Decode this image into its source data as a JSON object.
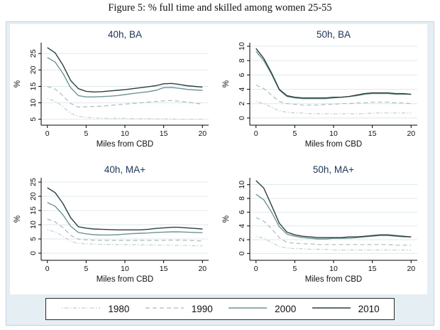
{
  "figure_title": "Figure 5: % full time and skilled among women 25-55",
  "colors": {
    "figure_background": "#e4eef3",
    "plot_background": "#ffffff",
    "grid": "#dde8ee",
    "axis": "#000000",
    "subplot_title": "#1c3555",
    "series": {
      "s1980": "#c3cfcf",
      "s1990": "#a7bdbb",
      "s2000": "#6f9492",
      "s2010": "#2a403d"
    }
  },
  "legend": {
    "entries": [
      {
        "label": "1980",
        "style": "dashdot",
        "color": "#c3cfcf"
      },
      {
        "label": "1990",
        "style": "dashed",
        "color": "#a7bdbb"
      },
      {
        "label": "2000",
        "style": "solid",
        "color": "#6f9492"
      },
      {
        "label": "2010",
        "style": "solid",
        "color": "#2a403d"
      }
    ]
  },
  "chart_data": [
    {
      "type": "line",
      "title": "40h, BA",
      "xlabel": "Miles from CBD",
      "ylabel": "%",
      "x": [
        0,
        1,
        2,
        3,
        4,
        5,
        6,
        7,
        8,
        9,
        10,
        11,
        12,
        13,
        14,
        15,
        16,
        17,
        18,
        19,
        20
      ],
      "xticks": [
        0,
        5,
        10,
        15,
        20
      ],
      "xlim": [
        -0.8,
        20.8
      ],
      "yticks": [
        5,
        10,
        15,
        20,
        25
      ],
      "ylim": [
        3.2,
        28.3
      ],
      "grid": "horizontal",
      "legend_position": "bottom-shared",
      "series": [
        {
          "name": "1980",
          "style": "dashdot",
          "values": [
            11.3,
            10.5,
            8.8,
            6.8,
            5.9,
            5.6,
            5.4,
            5.3,
            5.3,
            5.3,
            5.3,
            5.2,
            5.2,
            5.2,
            5.1,
            5.1,
            5.1,
            5.0,
            5.0,
            5.0,
            5.0
          ]
        },
        {
          "name": "1990",
          "style": "dashed",
          "values": [
            15.0,
            14.2,
            12.2,
            9.8,
            8.7,
            8.8,
            8.9,
            9.0,
            9.2,
            9.4,
            9.6,
            9.8,
            10.0,
            10.2,
            10.4,
            10.6,
            10.7,
            10.5,
            10.2,
            9.9,
            9.6
          ]
        },
        {
          "name": "2000",
          "style": "solid",
          "values": [
            23.8,
            22.4,
            19.0,
            14.6,
            12.2,
            11.8,
            11.8,
            11.9,
            12.0,
            12.2,
            12.5,
            12.8,
            13.1,
            13.4,
            13.8,
            14.6,
            14.7,
            14.4,
            14.1,
            13.9,
            13.8
          ]
        },
        {
          "name": "2010",
          "style": "solid",
          "values": [
            26.8,
            25.2,
            21.5,
            16.8,
            14.3,
            13.5,
            13.3,
            13.4,
            13.6,
            13.8,
            14.0,
            14.3,
            14.6,
            14.9,
            15.2,
            15.8,
            15.9,
            15.6,
            15.2,
            15.0,
            14.8
          ]
        }
      ]
    },
    {
      "type": "line",
      "title": "50h, BA",
      "xlabel": "Miles from CBD",
      "ylabel": "%",
      "x": [
        0,
        1,
        2,
        3,
        4,
        5,
        6,
        7,
        8,
        9,
        10,
        11,
        12,
        13,
        14,
        15,
        16,
        17,
        18,
        19,
        20
      ],
      "xticks": [
        0,
        5,
        10,
        15,
        20
      ],
      "xlim": [
        -0.8,
        20.8
      ],
      "yticks": [
        0,
        2,
        4,
        6,
        8,
        10
      ],
      "ylim": [
        -1.0,
        10.5
      ],
      "grid": "horizontal",
      "legend_position": "bottom-shared",
      "series": [
        {
          "name": "1980",
          "style": "dashdot",
          "values": [
            2.3,
            2.0,
            1.5,
            1.0,
            0.8,
            0.7,
            0.7,
            0.6,
            0.6,
            0.6,
            0.6,
            0.6,
            0.6,
            0.6,
            0.6,
            0.7,
            0.7,
            0.7,
            0.7,
            0.7,
            0.7
          ]
        },
        {
          "name": "1990",
          "style": "dashed",
          "values": [
            4.6,
            4.1,
            3.2,
            2.3,
            2.0,
            1.9,
            1.8,
            1.8,
            1.8,
            1.9,
            1.9,
            2.0,
            2.0,
            2.1,
            2.1,
            2.2,
            2.2,
            2.2,
            2.1,
            2.1,
            2.0
          ]
        },
        {
          "name": "2000",
          "style": "solid",
          "values": [
            9.3,
            8.0,
            6.1,
            3.9,
            3.0,
            2.8,
            2.7,
            2.7,
            2.7,
            2.7,
            2.8,
            2.9,
            3.0,
            3.1,
            3.3,
            3.4,
            3.4,
            3.4,
            3.3,
            3.3,
            3.3
          ]
        },
        {
          "name": "2010",
          "style": "solid",
          "values": [
            9.7,
            8.3,
            6.3,
            4.0,
            3.1,
            2.9,
            2.8,
            2.8,
            2.8,
            2.8,
            2.9,
            2.9,
            3.0,
            3.2,
            3.4,
            3.5,
            3.5,
            3.5,
            3.4,
            3.4,
            3.3
          ]
        }
      ]
    },
    {
      "type": "line",
      "title": "40h, MA+",
      "xlabel": "Miles from CBD",
      "ylabel": "%",
      "x": [
        0,
        1,
        2,
        3,
        4,
        5,
        6,
        7,
        8,
        9,
        10,
        11,
        12,
        13,
        14,
        15,
        16,
        17,
        18,
        19,
        20
      ],
      "xticks": [
        0,
        5,
        10,
        15,
        20
      ],
      "xlim": [
        -0.8,
        20.8
      ],
      "yticks": [
        0,
        5,
        10,
        15,
        20,
        25
      ],
      "ylim": [
        -2.5,
        26.5
      ],
      "grid": "horizontal",
      "legend_position": "bottom-shared",
      "series": [
        {
          "name": "1980",
          "style": "dashdot",
          "values": [
            8.2,
            7.5,
            6.0,
            4.2,
            3.4,
            3.3,
            3.2,
            3.1,
            3.1,
            3.0,
            3.0,
            3.0,
            2.9,
            2.9,
            2.8,
            2.8,
            2.8,
            2.7,
            2.7,
            2.6,
            2.6
          ]
        },
        {
          "name": "1990",
          "style": "dashed",
          "values": [
            12.0,
            11.0,
            9.0,
            6.3,
            4.9,
            4.7,
            4.6,
            4.5,
            4.5,
            4.5,
            4.5,
            4.5,
            4.5,
            4.5,
            4.5,
            4.5,
            4.6,
            4.6,
            4.5,
            4.4,
            4.3
          ]
        },
        {
          "name": "2000",
          "style": "solid",
          "values": [
            17.8,
            16.5,
            13.5,
            9.5,
            7.3,
            6.8,
            6.5,
            6.4,
            6.4,
            6.5,
            6.7,
            6.9,
            7.0,
            7.1,
            7.3,
            7.4,
            7.5,
            7.5,
            7.4,
            7.3,
            7.2
          ]
        },
        {
          "name": "2010",
          "style": "solid",
          "values": [
            23.0,
            21.3,
            17.5,
            12.5,
            9.3,
            8.8,
            8.5,
            8.4,
            8.3,
            8.2,
            8.2,
            8.2,
            8.2,
            8.4,
            8.7,
            8.9,
            9.1,
            9.1,
            8.9,
            8.7,
            8.5
          ]
        }
      ]
    },
    {
      "type": "line",
      "title": "50h, MA+",
      "xlabel": "Miles from CBD",
      "ylabel": "%",
      "x": [
        0,
        1,
        2,
        3,
        4,
        5,
        6,
        7,
        8,
        9,
        10,
        11,
        12,
        13,
        14,
        15,
        16,
        17,
        18,
        19,
        20
      ],
      "xticks": [
        0,
        5,
        10,
        15,
        20
      ],
      "xlim": [
        -0.8,
        20.8
      ],
      "yticks": [
        0,
        2,
        4,
        6,
        8,
        10
      ],
      "ylim": [
        -1.0,
        11.0
      ],
      "grid": "horizontal",
      "legend_position": "bottom-shared",
      "series": [
        {
          "name": "1980",
          "style": "dashdot",
          "values": [
            2.5,
            2.2,
            1.6,
            1.0,
            0.8,
            0.7,
            0.7,
            0.6,
            0.6,
            0.6,
            0.5,
            0.5,
            0.5,
            0.5,
            0.5,
            0.5,
            0.5,
            0.5,
            0.5,
            0.5,
            0.5
          ]
        },
        {
          "name": "1990",
          "style": "dashed",
          "values": [
            5.2,
            4.7,
            3.6,
            2.3,
            1.6,
            1.5,
            1.4,
            1.4,
            1.3,
            1.3,
            1.3,
            1.3,
            1.3,
            1.3,
            1.3,
            1.3,
            1.3,
            1.3,
            1.2,
            1.2,
            1.2
          ]
        },
        {
          "name": "2000",
          "style": "solid",
          "values": [
            8.6,
            7.8,
            6.0,
            3.9,
            2.8,
            2.5,
            2.3,
            2.2,
            2.1,
            2.1,
            2.2,
            2.2,
            2.2,
            2.3,
            2.4,
            2.5,
            2.6,
            2.6,
            2.5,
            2.4,
            2.4
          ]
        },
        {
          "name": "2010",
          "style": "solid",
          "values": [
            10.6,
            9.5,
            7.0,
            4.4,
            3.1,
            2.7,
            2.5,
            2.4,
            2.3,
            2.3,
            2.3,
            2.3,
            2.4,
            2.4,
            2.5,
            2.6,
            2.7,
            2.7,
            2.6,
            2.5,
            2.4
          ]
        }
      ]
    }
  ]
}
